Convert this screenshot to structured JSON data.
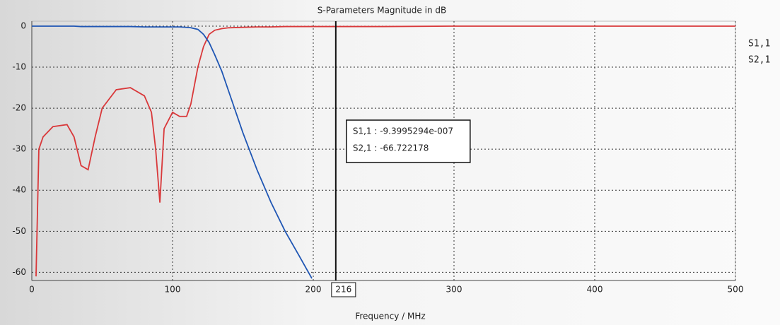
{
  "chart_data": {
    "type": "line",
    "title": "S-Parameters Magnitude in dB",
    "xlabel": "Frequency / MHz",
    "x": [
      0,
      3,
      5,
      8,
      15,
      25,
      30,
      35,
      40,
      45,
      50,
      60,
      70,
      80,
      85,
      88,
      91,
      94,
      100,
      105,
      110,
      113,
      118,
      122,
      126,
      130,
      135,
      140,
      150,
      160,
      170,
      180,
      190,
      199,
      250,
      300,
      400,
      500
    ],
    "series": [
      {
        "name": "S1,1",
        "color": "#d9383a",
        "values": [
          null,
          -61,
          -30,
          -27,
          -24.5,
          -24,
          -27,
          -34,
          -35,
          -27,
          -20,
          -15.5,
          -15,
          -17,
          -21,
          -30,
          -43,
          -25,
          -21,
          -22,
          -22,
          -19,
          -10,
          -5,
          -2,
          -1,
          -0.6,
          -0.4,
          -0.3,
          -0.2,
          -0.2,
          -0.1,
          -0.1,
          -0.1,
          -0.1,
          0,
          0,
          0
        ]
      },
      {
        "name": "S2,1",
        "color": "#1f56b4",
        "values": [
          0,
          0,
          0,
          0,
          0,
          0,
          0,
          -0.1,
          -0.1,
          -0.1,
          -0.1,
          -0.1,
          -0.1,
          -0.2,
          -0.2,
          -0.2,
          -0.2,
          -0.2,
          -0.2,
          -0.2,
          -0.3,
          -0.4,
          -0.8,
          -2,
          -4,
          -7,
          -11,
          -16,
          -26,
          -35,
          -43,
          -50,
          -56,
          -61.5,
          null,
          null,
          null,
          null
        ]
      }
    ],
    "xlim": [
      0,
      500
    ],
    "ylim": [
      -62,
      1.2
    ],
    "xticks": [
      0,
      100,
      200,
      300,
      400,
      500
    ],
    "yticks": [
      0,
      -10,
      -20,
      -30,
      -40,
      -50,
      -60
    ],
    "grid": true,
    "legend": "right",
    "marker": {
      "x": 216,
      "label": "216"
    },
    "annotations": [
      "S1,1 : -9.3995294e-007",
      "S2,1 : -66.722178"
    ]
  }
}
